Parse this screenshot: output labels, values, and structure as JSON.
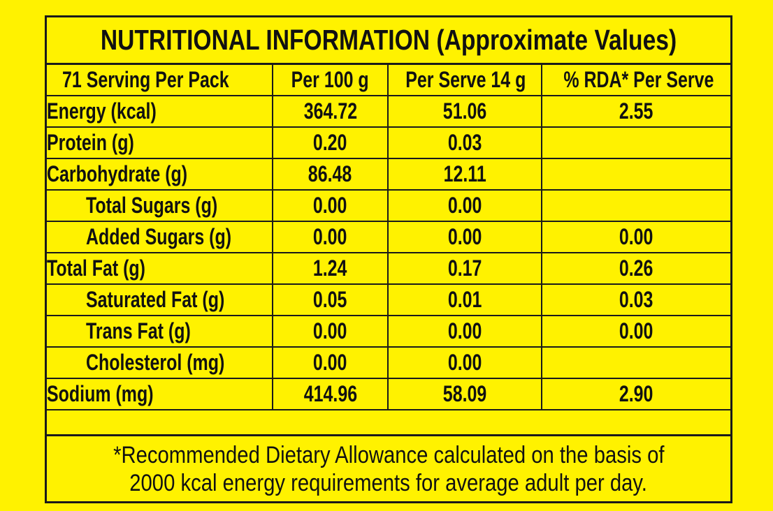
{
  "title": "NUTRITIONAL INFORMATION (Approximate Values)",
  "headers": [
    "71 Serving Per Pack",
    "Per 100 g",
    "Per Serve 14 g",
    "% RDA* Per Serve"
  ],
  "rows": [
    {
      "label": "Energy (kcal)",
      "per100": "364.72",
      "perServe": "51.06",
      "rda": "2.55"
    },
    {
      "label": "Protein (g)",
      "per100": "0.20",
      "perServe": "0.03",
      "rda": ""
    },
    {
      "label": "Carbohydrate (g)",
      "per100": "86.48",
      "perServe": "12.11",
      "rda": ""
    },
    {
      "label": "Total Sugars (g)",
      "per100": "0.00",
      "perServe": "0.00",
      "rda": ""
    },
    {
      "label": "Added Sugars (g)",
      "per100": "0.00",
      "perServe": "0.00",
      "rda": "0.00"
    },
    {
      "label": "Total Fat (g)",
      "per100": "1.24",
      "perServe": "0.17",
      "rda": "0.26"
    },
    {
      "label": "Saturated Fat (g)",
      "per100": "0.05",
      "perServe": "0.01",
      "rda": "0.03"
    },
    {
      "label": "Trans Fat (g)",
      "per100": "0.00",
      "perServe": "0.00",
      "rda": "0.00"
    },
    {
      "label": "Cholesterol (mg)",
      "per100": "0.00",
      "perServe": "0.00",
      "rda": ""
    },
    {
      "label": "Sodium (mg)",
      "per100": "414.96",
      "perServe": "58.09",
      "rda": "2.90"
    }
  ],
  "footnote": {
    "line1": "*Recommended Dietary Allowance calculated on the basis of",
    "line2": "2000 kcal energy requirements for average adult per day."
  },
  "colors": {
    "background": "#fff200",
    "ink": "#1a1a1a"
  }
}
